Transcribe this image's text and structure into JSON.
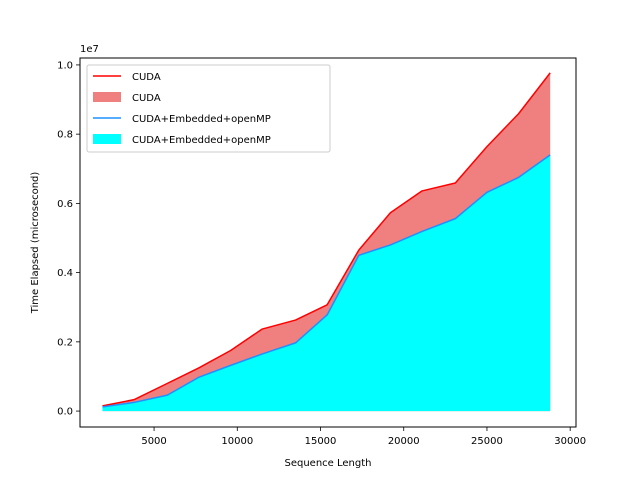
{
  "chart_data": {
    "type": "area",
    "xlabel": "Sequence Length",
    "ylabel": "Time Elapsed (microsecond)",
    "y_offset_text": "1e7",
    "xlim": [
      550,
      30350
    ],
    "ylim": [
      -460000,
      10200000
    ],
    "x_ticks": [
      5000,
      10000,
      15000,
      20000,
      25000,
      30000
    ],
    "x_tick_labels": [
      "5000",
      "10000",
      "15000",
      "20000",
      "25000",
      "30000"
    ],
    "y_ticks": [
      0,
      2000000,
      4000000,
      6000000,
      8000000,
      10000000
    ],
    "y_tick_labels": [
      "0.0",
      "0.2",
      "0.4",
      "0.6",
      "0.8",
      "1.0"
    ],
    "grid": false,
    "legend_position": "upper-left",
    "x": [
      1900,
      3800,
      5800,
      7700,
      9600,
      11500,
      13500,
      15400,
      17300,
      19200,
      21100,
      23100,
      25000,
      26900,
      28800
    ],
    "series": [
      {
        "name": "CUDA",
        "line_color": "#ff0000",
        "fill_color": "#f08080",
        "values": [
          150000,
          330000,
          800000,
          1250000,
          1750000,
          2370000,
          2630000,
          3070000,
          4650000,
          5730000,
          6360000,
          6590000,
          7640000,
          8590000,
          9770000
        ]
      },
      {
        "name": "CUDA+Embedded+openMP",
        "line_color": "#1e90ff",
        "fill_color": "#00ffff",
        "values": [
          120000,
          250000,
          460000,
          980000,
          1320000,
          1650000,
          1970000,
          2780000,
          4500000,
          4800000,
          5190000,
          5560000,
          6320000,
          6750000,
          7400000
        ]
      }
    ],
    "legend": [
      {
        "label": "CUDA",
        "kind": "line",
        "color": "#ff0000"
      },
      {
        "label": "CUDA",
        "kind": "patch",
        "color": "#f08080"
      },
      {
        "label": "CUDA+Embedded+openMP",
        "kind": "line",
        "color": "#1e90ff"
      },
      {
        "label": "CUDA+Embedded+openMP",
        "kind": "patch",
        "color": "#00ffff"
      }
    ]
  }
}
